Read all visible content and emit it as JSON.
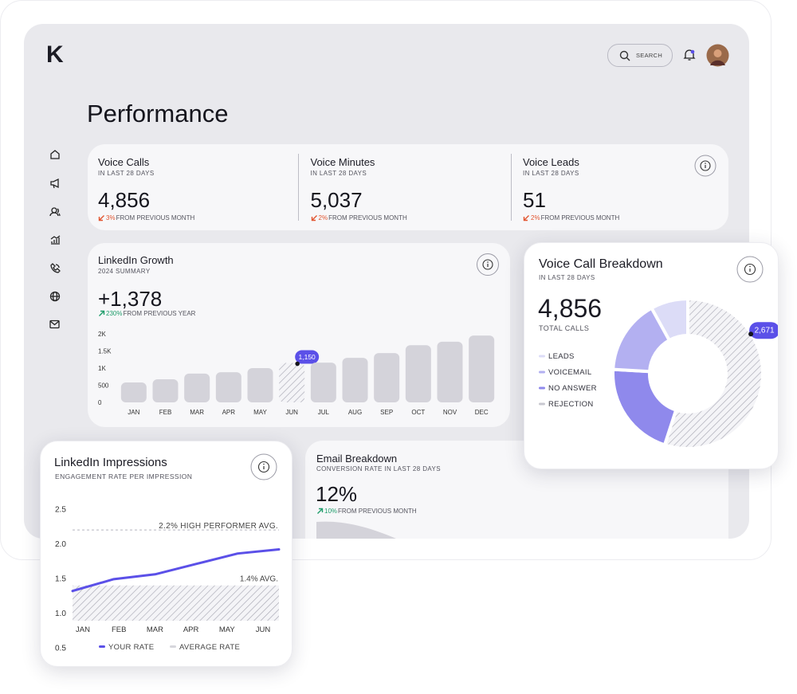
{
  "header": {
    "logo": "K",
    "search": "SEARCH"
  },
  "page_title": "Performance",
  "stats": [
    {
      "title": "Voice Calls",
      "period": "IN LAST 28 DAYS",
      "value": "4,856",
      "change": "3%",
      "change_text": "FROM PREVIOUS MONTH",
      "trend": "down"
    },
    {
      "title": "Voice Minutes",
      "period": "IN LAST 28 DAYS",
      "value": "5,037",
      "change": "2%",
      "change_text": "FROM PREVIOUS MONTH",
      "trend": "down"
    },
    {
      "title": "Voice Leads",
      "period": "IN LAST 28 DAYS",
      "value": "51",
      "change": "2%",
      "change_text": "FROM PREVIOUS MONTH",
      "trend": "down"
    }
  ],
  "chart_data": [
    {
      "type": "bar",
      "title": "LinkedIn Growth",
      "subtitle": "2024 SUMMARY",
      "headline": "+1,378",
      "change": "230%",
      "change_text": "FROM PREVIOUS YEAR",
      "trend": "up",
      "categories": [
        "JAN",
        "FEB",
        "MAR",
        "APR",
        "MAY",
        "JUN",
        "JUL",
        "AUG",
        "SEP",
        "OCT",
        "NOV",
        "DEC"
      ],
      "values": [
        580,
        675,
        840,
        880,
        1000,
        1150,
        1160,
        1300,
        1440,
        1670,
        1770,
        1950
      ],
      "value_labels": [
        null,
        null,
        null,
        null,
        null,
        "1,150",
        null,
        null,
        null,
        null,
        null,
        null
      ],
      "color": "#d4d3da",
      "ylim": [
        0,
        2000
      ],
      "yticks": [
        0,
        500,
        {
          "value": 1000,
          "label": "1K"
        },
        {
          "value": 1500,
          "label": "1.5K"
        },
        {
          "value": 2000,
          "label": "2K"
        }
      ]
    },
    {
      "type": "pie",
      "title": "Voice Call Breakdown",
      "subtitle": "IN LAST 28 DAYS",
      "total": "4,856",
      "total_label": "TOTAL CALLS",
      "categories": [
        "LEADS",
        "VOICEMAIL",
        "NO ANSWER",
        "REJECTION"
      ],
      "values": [
        390,
        780,
        1015,
        2671
      ],
      "value_labels": [
        null,
        null,
        null,
        "2,671"
      ],
      "colors": [
        "#dcdcf7",
        "#b3b0f1",
        "#8f89ec",
        "#c8c8d0"
      ]
    },
    {
      "type": "line",
      "title": "LinkedIn Impressions",
      "subtitle": "ENGAGEMENT RATE PER IMPRESSION",
      "categories": [
        "JAN",
        "FEB",
        "MAR",
        "APR",
        "MAY",
        "JUN"
      ],
      "series": [
        {
          "name": "YOUR RATE",
          "color": "#5b50e8",
          "values": [
            1.32,
            1.49,
            1.56,
            1.71,
            1.86,
            1.92
          ]
        },
        {
          "name": "AVERAGE RATE",
          "color": "#d6d6dc",
          "values": [
            1.4,
            1.4,
            1.4,
            1.4,
            1.4,
            1.4
          ],
          "label": "1.4% AVG."
        }
      ],
      "reference_line": {
        "value": 2.2,
        "label": "2.2% HIGH PERFORMER AVG."
      },
      "ylim": [
        0.5,
        2.5
      ],
      "yticks": [
        0.5,
        {
          "value": 1,
          "label": "1.0"
        },
        1.5,
        {
          "value": 2,
          "label": "2.0"
        },
        2.5
      ]
    }
  ],
  "email": {
    "title": "Email Breakdown",
    "subtitle": "CONVERSION RATE IN LAST 28 DAYS",
    "value": "12%",
    "change": "10%",
    "change_text": "FROM PREVIOUS MONTH",
    "trend": "up"
  }
}
